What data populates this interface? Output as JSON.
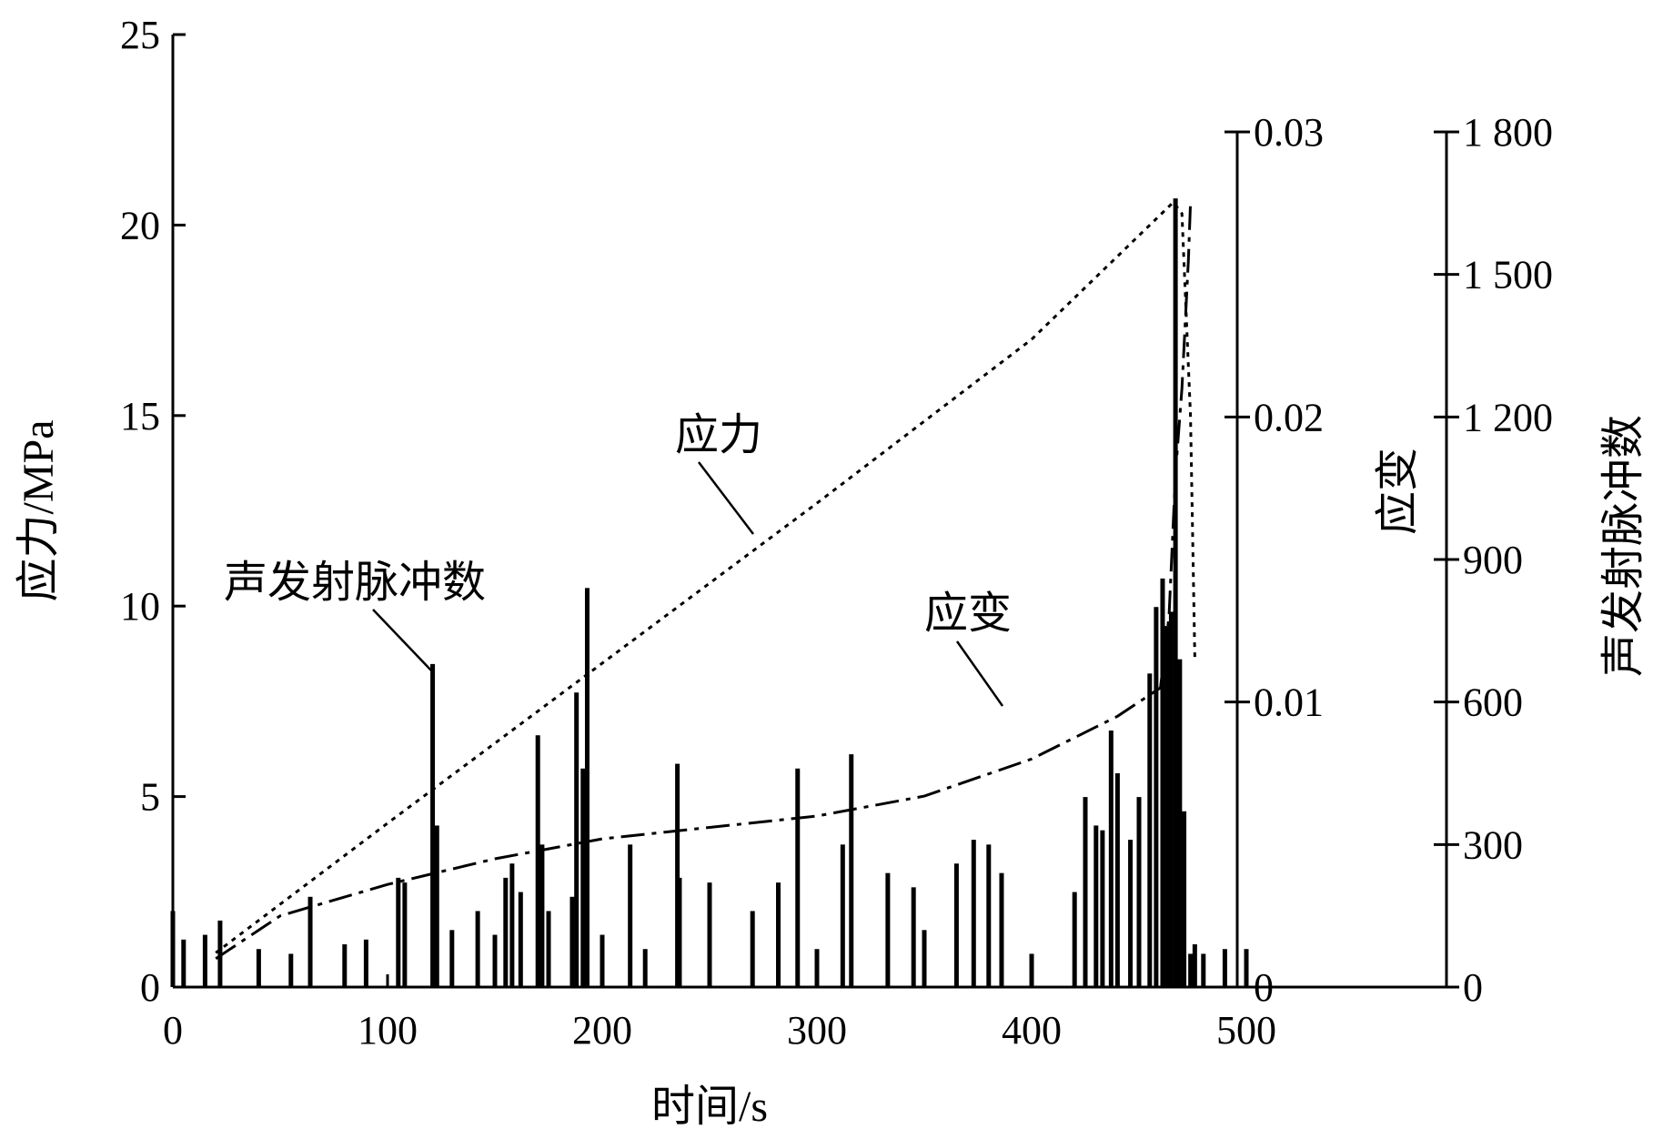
{
  "chart_data": {
    "type": "line",
    "title": "",
    "xlabel": "时间/s",
    "xlim": [
      0,
      500
    ],
    "xticks": [
      0,
      100,
      200,
      300,
      400,
      500
    ],
    "y_axes": [
      {
        "id": "stress",
        "side": "left",
        "label": "应力/MPa",
        "range": [
          0,
          25
        ],
        "ticks": [
          0,
          5,
          10,
          15,
          20,
          25
        ],
        "tick_labels": [
          "0",
          "5",
          "10",
          "15",
          "20",
          "25"
        ]
      },
      {
        "id": "strain",
        "side": "right",
        "label": "应变",
        "range": [
          0,
          0.03
        ],
        "ticks": [
          0,
          0.01,
          0.02,
          0.03
        ],
        "tick_labels": [
          "0",
          "0.01",
          "0.02",
          "0.03"
        ]
      },
      {
        "id": "ae",
        "side": "right-outer",
        "label": "声发射脉冲数",
        "range": [
          0,
          1800
        ],
        "ticks": [
          0,
          300,
          600,
          900,
          1200,
          1500,
          1800
        ],
        "tick_labels": [
          "0",
          "300",
          "600",
          "900",
          "1 200",
          "1 500",
          "1 800"
        ]
      }
    ],
    "series": [
      {
        "name": "应力",
        "axis": "stress",
        "style": "dotted",
        "x": [
          20,
          100,
          200,
          300,
          400,
          466,
          470,
          474,
          476
        ],
        "y": [
          0.9,
          4.3,
          8.5,
          12.7,
          17.0,
          20.6,
          20.3,
          15.0,
          8.6
        ]
      },
      {
        "name": "应变",
        "axis": "strain",
        "style": "dashdot",
        "x": [
          20,
          50,
          100,
          150,
          200,
          250,
          300,
          350,
          400,
          440,
          460,
          464,
          467,
          470,
          473,
          474
        ],
        "y": [
          0.001,
          0.0025,
          0.0036,
          0.0045,
          0.0052,
          0.0056,
          0.006,
          0.0067,
          0.008,
          0.0095,
          0.0105,
          0.013,
          0.018,
          0.021,
          0.0255,
          0.0275
        ]
      },
      {
        "name": "声发射脉冲数",
        "axis": "ae",
        "type": "bar",
        "x": [
          0,
          5,
          15,
          22,
          40,
          55,
          64,
          80,
          90,
          105,
          108,
          121,
          123,
          130,
          142,
          150,
          155,
          158,
          162,
          170,
          172,
          175,
          186,
          188,
          191,
          193,
          200,
          213,
          220,
          235,
          236,
          250,
          270,
          282,
          291,
          300,
          312,
          316,
          333,
          345,
          350,
          365,
          373,
          380,
          386,
          400,
          420,
          425,
          430,
          433,
          437,
          440,
          446,
          450,
          455,
          458,
          461,
          463,
          465,
          467,
          469,
          471,
          474,
          476,
          480,
          490,
          500
        ],
        "y": [
          160,
          100,
          110,
          140,
          80,
          70,
          190,
          90,
          100,
          230,
          220,
          680,
          340,
          120,
          160,
          110,
          230,
          260,
          200,
          530,
          300,
          160,
          190,
          620,
          460,
          840,
          110,
          300,
          80,
          470,
          230,
          220,
          160,
          220,
          460,
          80,
          300,
          490,
          240,
          210,
          120,
          260,
          310,
          300,
          240,
          70,
          200,
          400,
          340,
          330,
          540,
          450,
          310,
          400,
          660,
          800,
          860,
          760,
          790,
          1660,
          690,
          370,
          70,
          90,
          70,
          80,
          80
        ]
      }
    ],
    "annotations": [
      {
        "text": "应力",
        "target": "应力"
      },
      {
        "text": "应变",
        "target": "应变"
      },
      {
        "text": "声发射脉冲数",
        "target": "声发射脉冲数"
      }
    ],
    "grid": false,
    "legend": "none"
  }
}
